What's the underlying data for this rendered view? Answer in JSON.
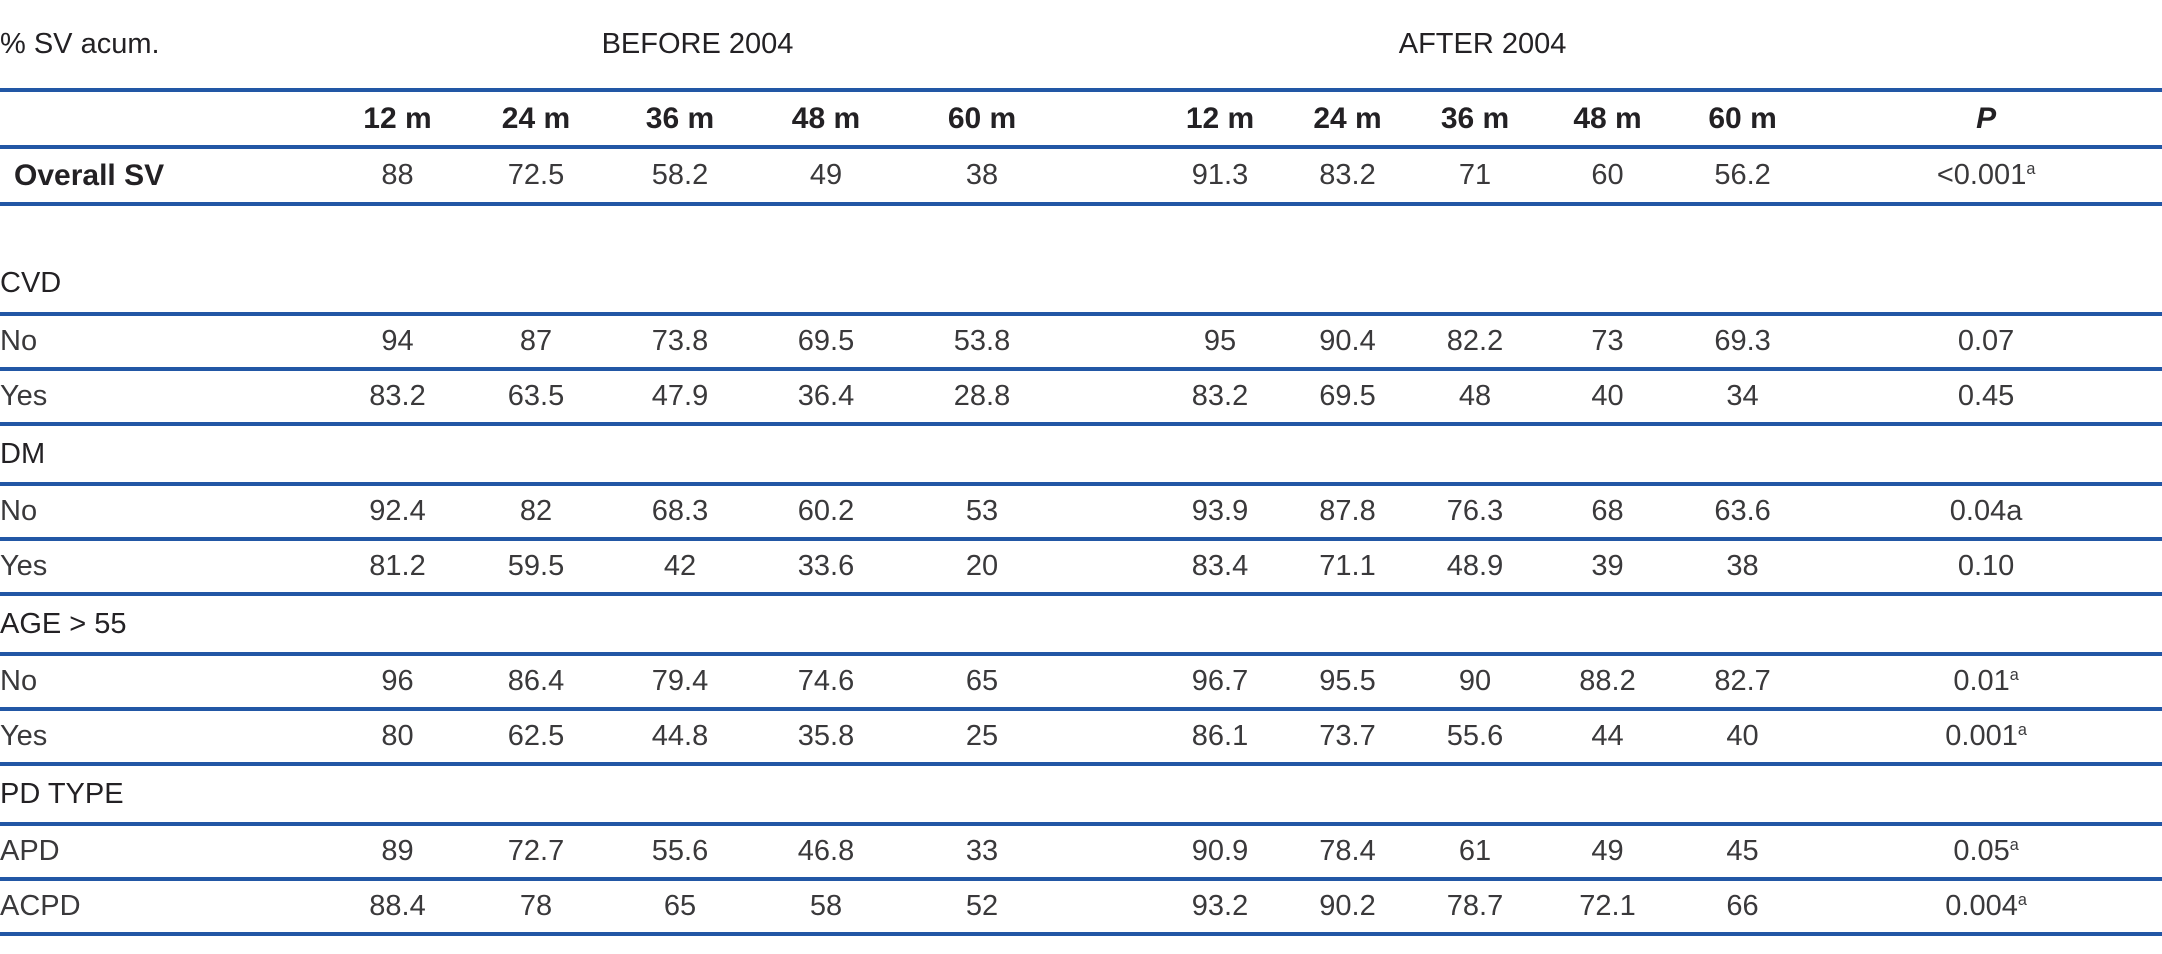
{
  "table": {
    "corner_label": "% SV acum.",
    "group_headers": {
      "before": "BEFORE 2004",
      "after": "AFTER 2004"
    },
    "time_columns": [
      "12 m",
      "24 m",
      "36 m",
      "48 m",
      "60 m"
    ],
    "p_label": "P",
    "colors": {
      "rule_blue": "#2257a5",
      "text": "#3a393b",
      "bold_text": "#232124"
    },
    "rows": [
      {
        "type": "data",
        "bold": true,
        "label": "Overall SV",
        "b": [
          "88",
          "72.5",
          "58.2",
          "49",
          "38"
        ],
        "a": [
          "91.3",
          "83.2",
          "71",
          "60",
          "56.2"
        ],
        "p": "<0.001",
        "p_sup": "a"
      },
      {
        "type": "spacer"
      },
      {
        "type": "section",
        "label": "CVD"
      },
      {
        "type": "data",
        "bold": false,
        "label": "No",
        "b": [
          "94",
          "87",
          "73.8",
          "69.5",
          "53.8"
        ],
        "a": [
          "95",
          "90.4",
          "82.2",
          "73",
          "69.3"
        ],
        "p": "0.07",
        "p_sup": ""
      },
      {
        "type": "data",
        "bold": false,
        "label": "Yes",
        "b": [
          "83.2",
          "63.5",
          "47.9",
          "36.4",
          "28.8"
        ],
        "a": [
          "83.2",
          "69.5",
          "48",
          "40",
          "34"
        ],
        "p": "0.45",
        "p_sup": ""
      },
      {
        "type": "section",
        "label": "DM"
      },
      {
        "type": "data",
        "bold": false,
        "label": "No",
        "b": [
          "92.4",
          "82",
          "68.3",
          "60.2",
          "53"
        ],
        "a": [
          "93.9",
          "87.8",
          "76.3",
          "68",
          "63.6"
        ],
        "p": "0.04a",
        "p_sup": ""
      },
      {
        "type": "data",
        "bold": false,
        "label": "Yes",
        "b": [
          "81.2",
          "59.5",
          "42",
          "33.6",
          "20"
        ],
        "a": [
          "83.4",
          "71.1",
          "48.9",
          "39",
          "38"
        ],
        "p": "0.10",
        "p_sup": ""
      },
      {
        "type": "section",
        "label": "AGE > 55"
      },
      {
        "type": "data",
        "bold": false,
        "label": "No",
        "b": [
          "96",
          "86.4",
          "79.4",
          "74.6",
          "65"
        ],
        "a": [
          "96.7",
          "95.5",
          "90",
          "88.2",
          "82.7"
        ],
        "p": "0.01",
        "p_sup": "a"
      },
      {
        "type": "data",
        "bold": false,
        "label": "Yes",
        "b": [
          "80",
          "62.5",
          "44.8",
          "35.8",
          "25"
        ],
        "a": [
          "86.1",
          "73.7",
          "55.6",
          "44",
          "40"
        ],
        "p": "0.001",
        "p_sup": "a"
      },
      {
        "type": "section",
        "label": "PD TYPE"
      },
      {
        "type": "data",
        "bold": false,
        "label": "APD",
        "b": [
          "89",
          "72.7",
          "55.6",
          "46.8",
          "33"
        ],
        "a": [
          "90.9",
          "78.4",
          "61",
          "49",
          "45"
        ],
        "p": "0.05",
        "p_sup": "a"
      },
      {
        "type": "data",
        "bold": false,
        "label": "ACPD",
        "b": [
          "88.4",
          "78",
          "65",
          "58",
          "52"
        ],
        "a": [
          "93.2",
          "90.2",
          "78.7",
          "72.1",
          "66"
        ],
        "p": "0.004",
        "p_sup": "a"
      }
    ]
  }
}
